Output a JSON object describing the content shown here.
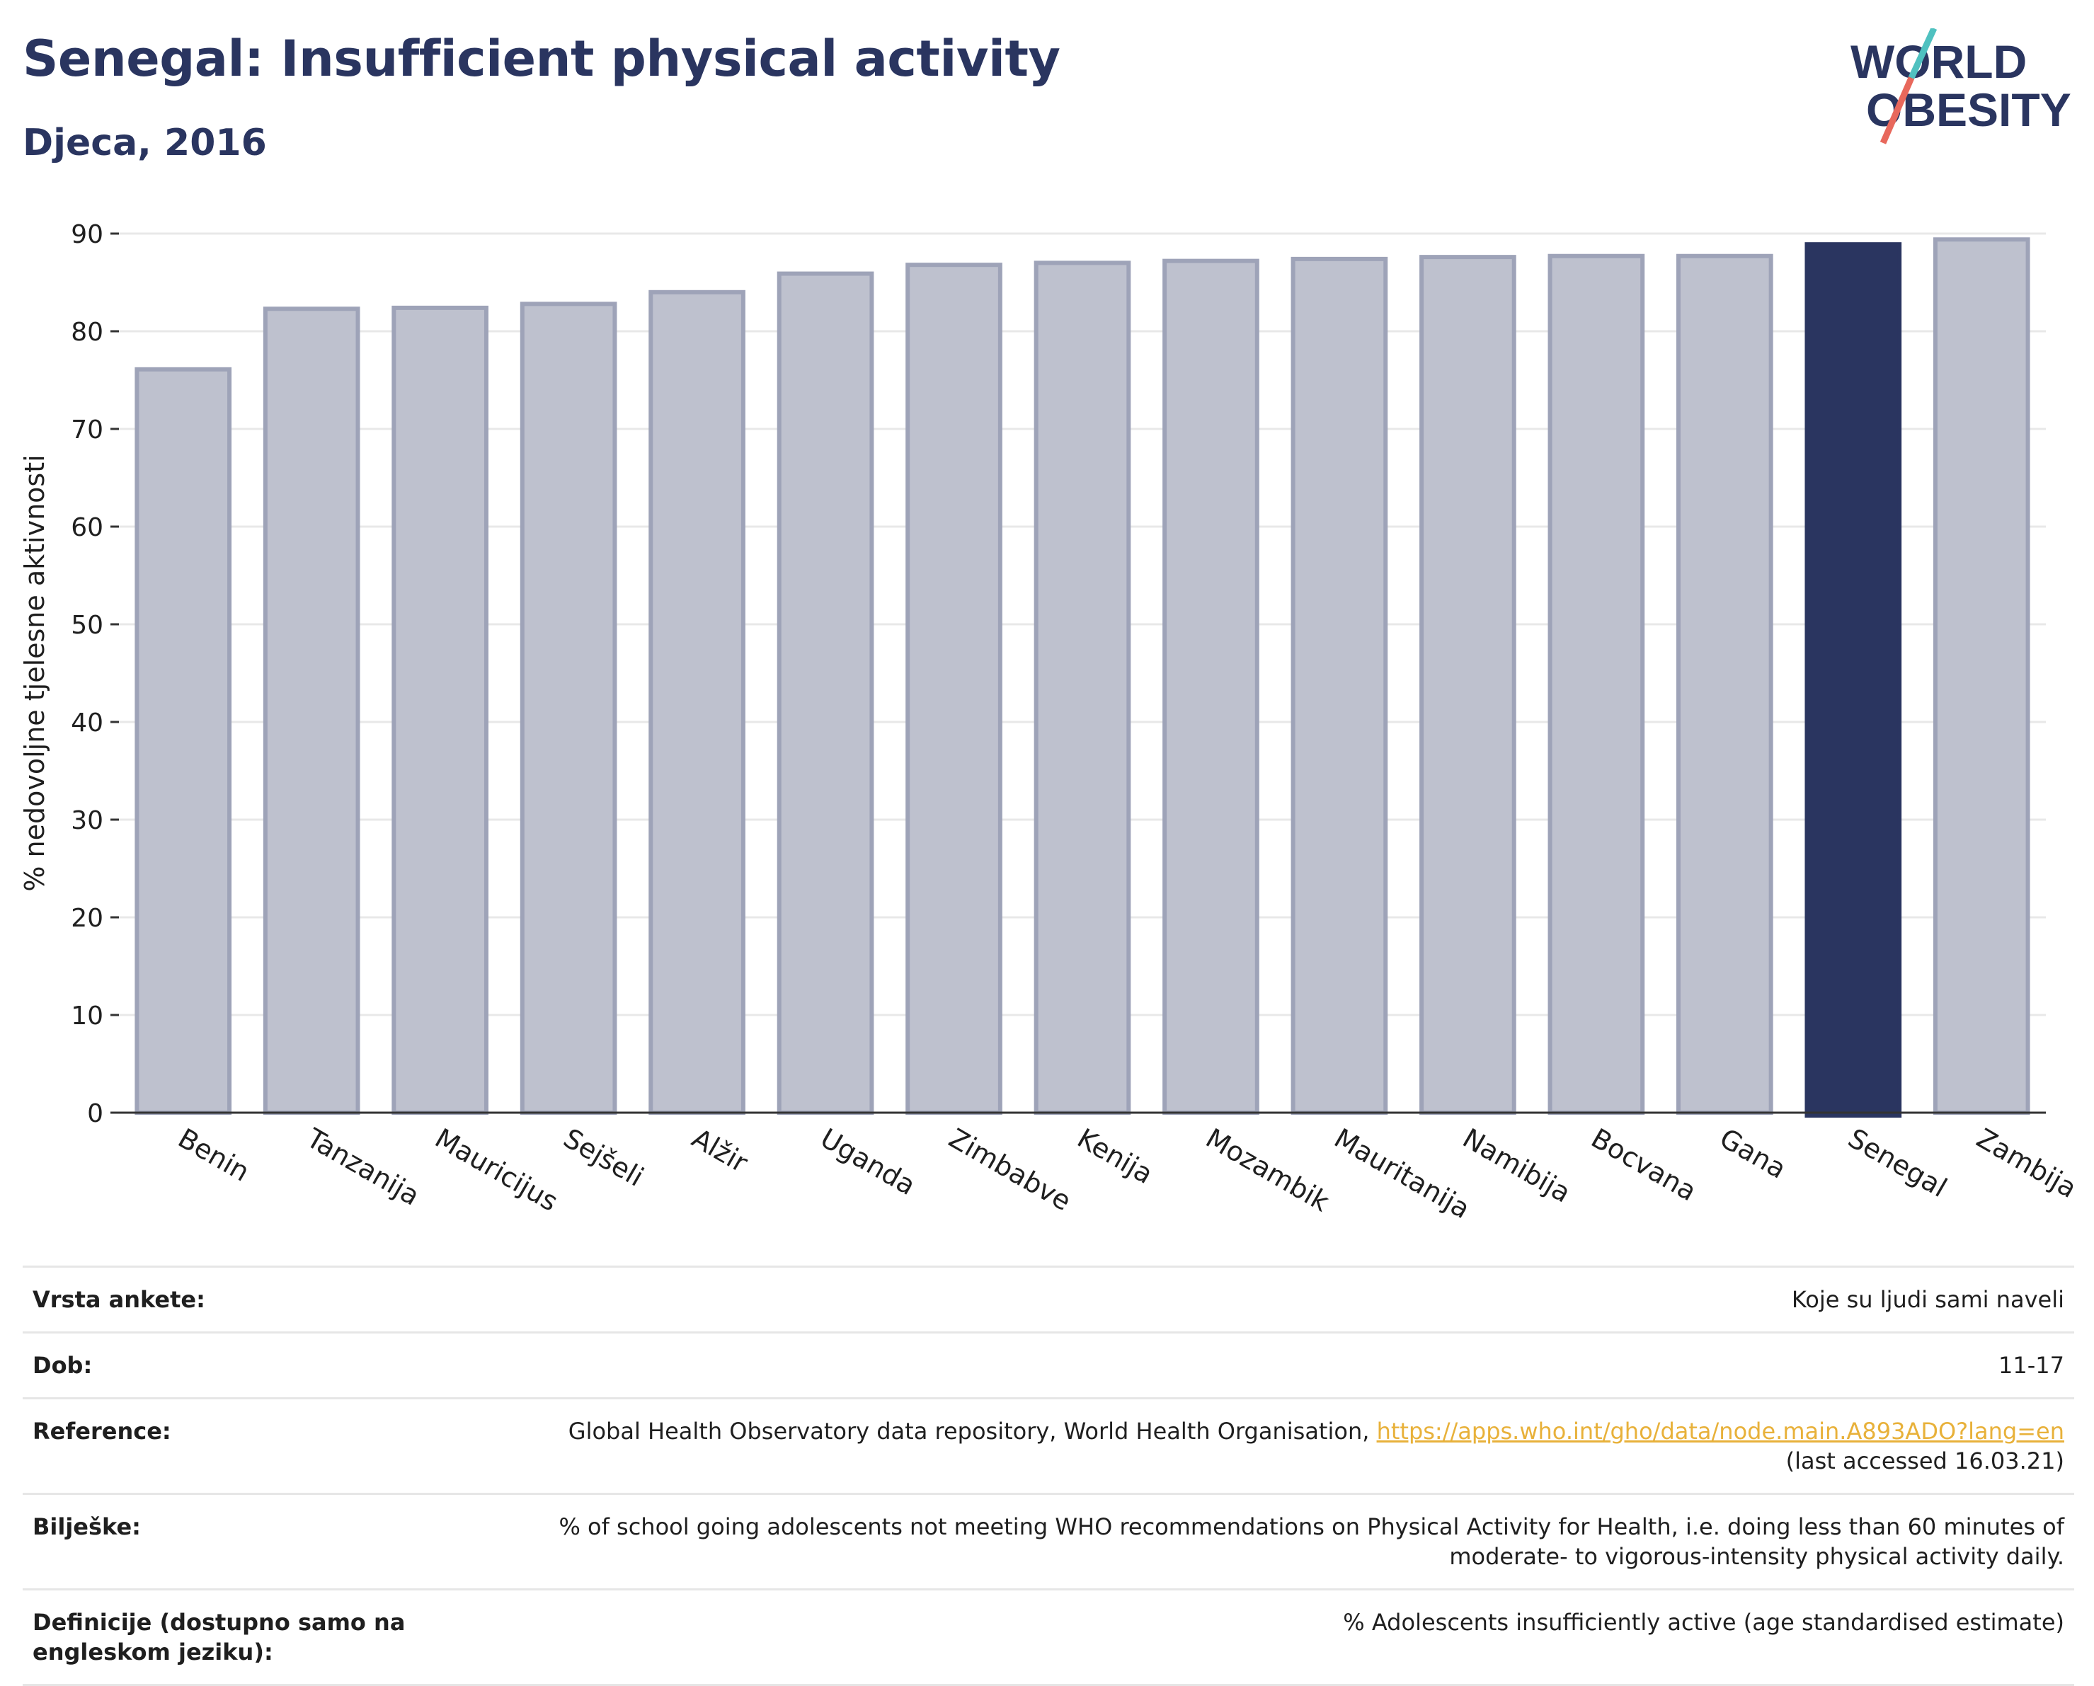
{
  "header": {
    "title": "Senegal: Insufficient physical activity",
    "subtitle": "Djeca, 2016"
  },
  "logo": {
    "line1": "WORLD",
    "line2": "OBESITY",
    "colors": {
      "text": "#2a3560",
      "slash_teal": "#4fc1c0",
      "slash_red": "#e8685c"
    }
  },
  "chart_data": {
    "type": "bar",
    "title": "",
    "xlabel": "",
    "ylabel": "% nedovoljne tjelesne aktivnosti",
    "ylim": [
      0,
      90
    ],
    "yticks": [
      0,
      10,
      20,
      30,
      40,
      50,
      60,
      70,
      80,
      90
    ],
    "grid": true,
    "highlight": "Senegal",
    "categories": [
      "Benin",
      "Tanzanija",
      "Mauricijus",
      "Sejšeli",
      "Alžir",
      "Uganda",
      "Zimbabve",
      "Kenija",
      "Mozambik",
      "Mauritanija",
      "Namibija",
      "Bocvana",
      "Gana",
      "Senegal",
      "Zambija"
    ],
    "values": [
      76.1,
      82.3,
      82.4,
      82.8,
      84.0,
      85.9,
      86.8,
      87.0,
      87.2,
      87.4,
      87.6,
      87.7,
      87.7,
      88.9,
      89.4
    ],
    "colors": {
      "bar": "#bec1ce",
      "bar_edge": "#9ea3b8",
      "highlight": "#2a3560",
      "grid": "#e8e8e8",
      "axis": "#333333"
    }
  },
  "info": {
    "rows": [
      {
        "label": "Vrsta ankete:",
        "value": "Koje su ljudi sami naveli"
      },
      {
        "label": "Dob:",
        "value": "11-17"
      },
      {
        "label": "Reference:",
        "value": "Global Health Observatory data repository, World Health Organisation,",
        "link": "https://apps.who.int/gho/data/node.main.A893ADO?lang=en",
        "value2": "(last accessed 16.03.21)"
      },
      {
        "label": "Bilješke:",
        "value": "% of school going adolescents not meeting WHO recommendations on Physical Activity for Health, i.e. doing less than 60 minutes of moderate- to vigorous-intensity physical activity daily."
      },
      {
        "label": "Definicije (dostupno samo na engleskom jeziku):",
        "value": "% Adolescents insufficiently active (age standardised estimate)"
      }
    ]
  }
}
